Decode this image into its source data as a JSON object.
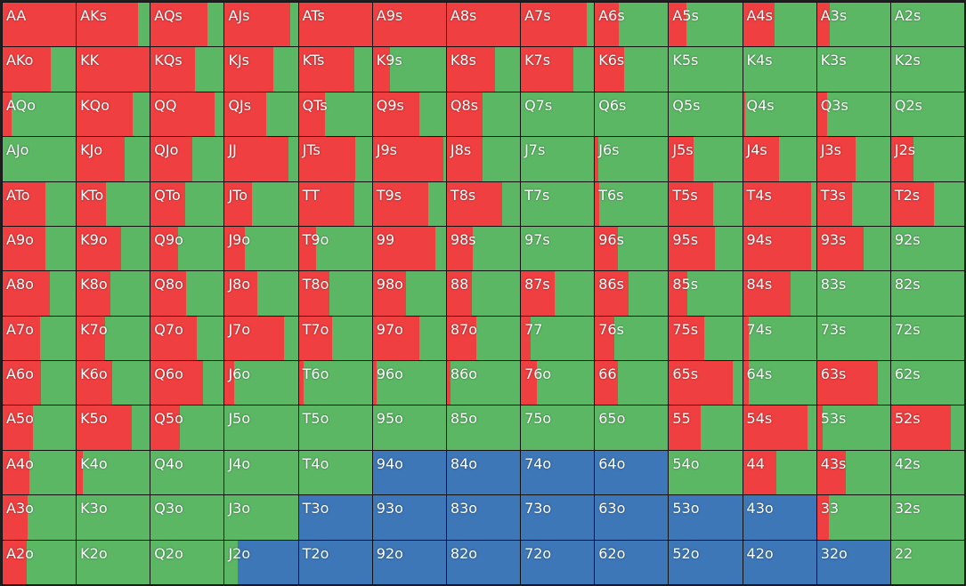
{
  "grid": {
    "colors": {
      "raise": "#ef3f40",
      "call": "#5cb765",
      "fold": "#3d77b8"
    },
    "hands": [
      [
        "AA",
        "AKs",
        "AQs",
        "AJs",
        "ATs",
        "A9s",
        "A8s",
        "A7s",
        "A6s",
        "A5s",
        "A4s",
        "A3s",
        "A2s"
      ],
      [
        "AKo",
        "KK",
        "KQs",
        "KJs",
        "KTs",
        "K9s",
        "K8s",
        "K7s",
        "K6s",
        "K5s",
        "K4s",
        "K3s",
        "K2s"
      ],
      [
        "AQo",
        "KQo",
        "QQ",
        "QJs",
        "QTs",
        "Q9s",
        "Q8s",
        "Q7s",
        "Q6s",
        "Q5s",
        "Q4s",
        "Q3s",
        "Q2s"
      ],
      [
        "AJo",
        "KJo",
        "QJo",
        "JJ",
        "JTs",
        "J9s",
        "J8s",
        "J7s",
        "J6s",
        "J5s",
        "J4s",
        "J3s",
        "J2s"
      ],
      [
        "ATo",
        "KTo",
        "QTo",
        "JTo",
        "TT",
        "T9s",
        "T8s",
        "T7s",
        "T6s",
        "T5s",
        "T4s",
        "T3s",
        "T2s"
      ],
      [
        "A9o",
        "K9o",
        "Q9o",
        "J9o",
        "T9o",
        "99",
        "98s",
        "97s",
        "96s",
        "95s",
        "94s",
        "93s",
        "92s"
      ],
      [
        "A8o",
        "K8o",
        "Q8o",
        "J8o",
        "T8o",
        "98o",
        "88",
        "87s",
        "86s",
        "85s",
        "84s",
        "83s",
        "82s"
      ],
      [
        "A7o",
        "K7o",
        "Q7o",
        "J7o",
        "T7o",
        "97o",
        "87o",
        "77",
        "76s",
        "75s",
        "74s",
        "73s",
        "72s"
      ],
      [
        "A6o",
        "K6o",
        "Q6o",
        "J6o",
        "T6o",
        "96o",
        "86o",
        "76o",
        "66",
        "65s",
        "64s",
        "63s",
        "62s"
      ],
      [
        "A5o",
        "K5o",
        "Q5o",
        "J5o",
        "T5o",
        "95o",
        "85o",
        "75o",
        "65o",
        "55",
        "54s",
        "53s",
        "52s"
      ],
      [
        "A4o",
        "K4o",
        "Q4o",
        "J4o",
        "T4o",
        "94o",
        "84o",
        "74o",
        "64o",
        "54o",
        "44",
        "43s",
        "42s"
      ],
      [
        "A3o",
        "K3o",
        "Q3o",
        "J3o",
        "T3o",
        "93o",
        "83o",
        "73o",
        "63o",
        "53o",
        "43o",
        "33",
        "32s"
      ],
      [
        "A2o",
        "K2o",
        "Q2o",
        "J2o",
        "T2o",
        "92o",
        "82o",
        "72o",
        "62o",
        "52o",
        "42o",
        "32o",
        "22"
      ]
    ],
    "raise": [
      [
        100,
        84,
        77,
        90,
        100,
        100,
        100,
        90,
        33,
        24,
        43,
        18,
        0
      ],
      [
        66,
        100,
        60,
        66,
        76,
        24,
        66,
        72,
        40,
        0,
        0,
        0,
        0
      ],
      [
        12,
        76,
        87,
        57,
        36,
        63,
        49,
        0,
        0,
        0,
        3,
        14,
        0
      ],
      [
        0,
        65,
        57,
        87,
        77,
        96,
        49,
        0,
        5,
        34,
        49,
        53,
        31
      ],
      [
        58,
        40,
        47,
        37,
        76,
        76,
        75,
        0,
        6,
        60,
        93,
        48,
        59
      ],
      [
        58,
        61,
        37,
        27,
        23,
        86,
        35,
        0,
        31,
        63,
        93,
        64,
        0
      ],
      [
        64,
        46,
        48,
        45,
        42,
        45,
        34,
        46,
        46,
        25,
        65,
        0,
        0
      ],
      [
        51,
        39,
        63,
        81,
        46,
        63,
        40,
        13,
        27,
        48,
        8,
        0,
        0
      ],
      [
        52,
        49,
        72,
        13,
        6,
        5,
        5,
        22,
        31,
        87,
        8,
        83,
        0
      ],
      [
        41,
        75,
        40,
        0,
        0,
        0,
        0,
        0,
        0,
        43,
        88,
        8,
        82
      ],
      [
        36,
        8,
        0,
        0,
        0,
        0,
        0,
        0,
        0,
        0,
        46,
        39,
        0
      ],
      [
        34,
        0,
        0,
        0,
        0,
        0,
        0,
        0,
        0,
        0,
        0,
        16,
        0
      ],
      [
        33,
        0,
        0,
        0,
        0,
        0,
        0,
        0,
        0,
        0,
        0,
        0,
        0
      ]
    ],
    "fold": [
      [
        0,
        0,
        0,
        0,
        0,
        0,
        0,
        0,
        0,
        0,
        0,
        0,
        0
      ],
      [
        0,
        0,
        0,
        0,
        0,
        0,
        0,
        0,
        0,
        0,
        0,
        0,
        0
      ],
      [
        0,
        0,
        0,
        0,
        0,
        0,
        0,
        0,
        0,
        0,
        0,
        0,
        0
      ],
      [
        0,
        0,
        0,
        0,
        0,
        0,
        0,
        0,
        0,
        0,
        0,
        0,
        0
      ],
      [
        0,
        0,
        0,
        0,
        0,
        0,
        0,
        0,
        0,
        0,
        0,
        0,
        0
      ],
      [
        0,
        0,
        0,
        0,
        0,
        0,
        0,
        0,
        0,
        0,
        0,
        0,
        0
      ],
      [
        0,
        0,
        0,
        0,
        0,
        0,
        0,
        0,
        0,
        0,
        0,
        0,
        0
      ],
      [
        0,
        0,
        0,
        0,
        0,
        0,
        0,
        0,
        0,
        0,
        0,
        0,
        0
      ],
      [
        0,
        0,
        0,
        0,
        0,
        0,
        0,
        0,
        0,
        0,
        0,
        0,
        0
      ],
      [
        0,
        0,
        0,
        0,
        0,
        0,
        0,
        0,
        0,
        0,
        0,
        0,
        0
      ],
      [
        0,
        0,
        0,
        0,
        0,
        100,
        100,
        100,
        100,
        0,
        0,
        0,
        0
      ],
      [
        0,
        0,
        0,
        0,
        100,
        100,
        100,
        100,
        100,
        100,
        100,
        0,
        0
      ],
      [
        0,
        0,
        0,
        82,
        100,
        100,
        100,
        100,
        100,
        100,
        100,
        100,
        0
      ]
    ]
  }
}
